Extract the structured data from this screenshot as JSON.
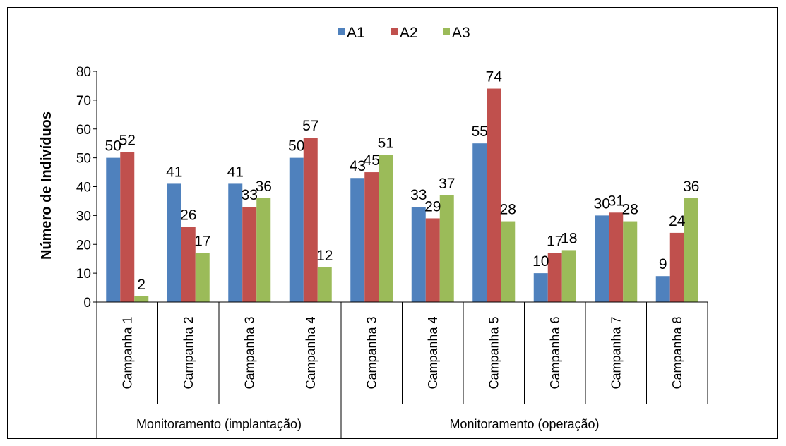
{
  "chart_data": {
    "type": "bar",
    "ylabel": "Número de Indivíduos",
    "ylim": [
      0,
      80
    ],
    "yticks": [
      0,
      10,
      20,
      30,
      40,
      50,
      60,
      70,
      80
    ],
    "grid": false,
    "legend_position": "top-center",
    "groups": [
      {
        "label": "Monitoramento (implantação)",
        "count": 4
      },
      {
        "label": "Monitoramento (operação)",
        "count": 6
      }
    ],
    "categories": [
      "Campanha 1",
      "Campanha 2",
      "Campanha 3",
      "Campanha 4",
      "Campanha 3",
      "Campanha 4",
      "Campanha 5",
      "Campanha 6",
      "Campanha 7",
      "Campanha 8"
    ],
    "series": [
      {
        "name": "A1",
        "color": "#4f81bd",
        "values": [
          50,
          41,
          41,
          50,
          43,
          33,
          55,
          10,
          30,
          9
        ]
      },
      {
        "name": "A2",
        "color": "#c0504d",
        "values": [
          52,
          26,
          33,
          57,
          45,
          29,
          74,
          17,
          31,
          24
        ]
      },
      {
        "name": "A3",
        "color": "#9bbb59",
        "values": [
          2,
          17,
          36,
          12,
          51,
          37,
          28,
          18,
          28,
          36
        ]
      }
    ]
  }
}
